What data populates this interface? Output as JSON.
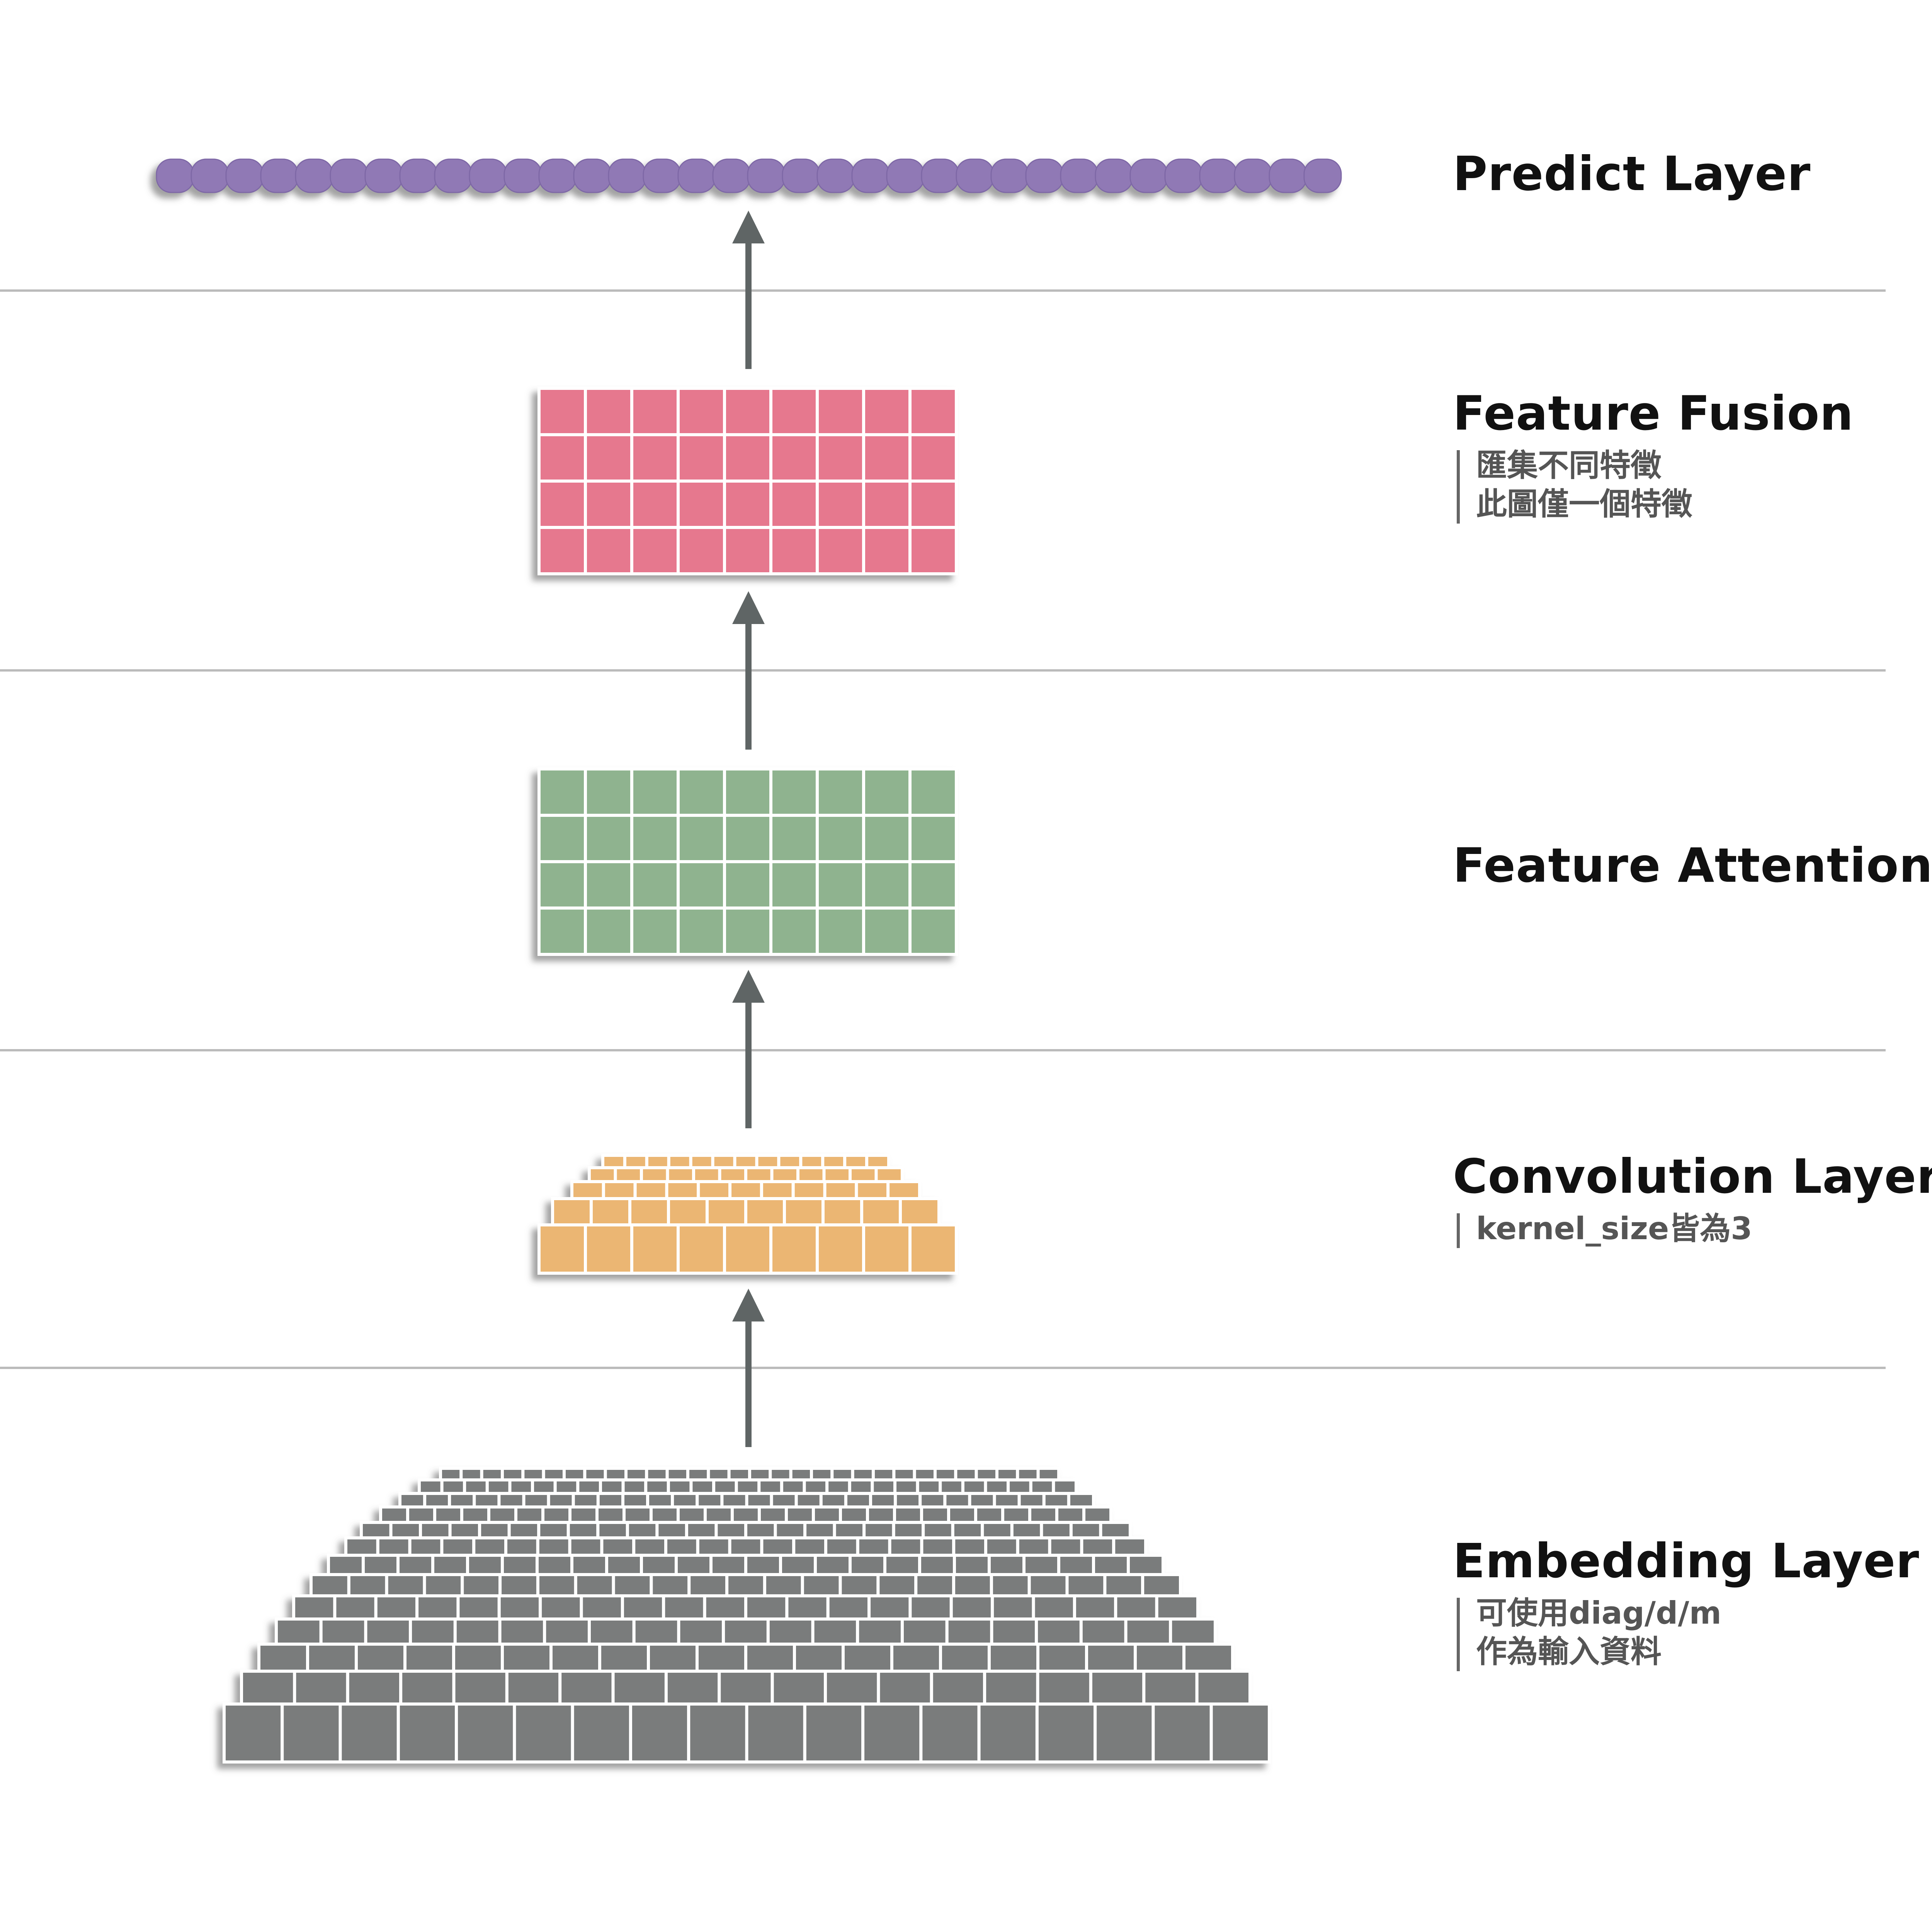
{
  "layers": [
    {
      "id": "predict",
      "title": "Predict Layer",
      "notes": [],
      "color": "#9079b5",
      "shape": "row-of-pills",
      "count": 34
    },
    {
      "id": "fusion",
      "title": "Feature Fusion",
      "notes": [
        "匯集不同特徵",
        "此圖僅一個特徵"
      ],
      "color": "#e6788e",
      "shape": "grid",
      "rows": 4,
      "cols": 9
    },
    {
      "id": "attention",
      "title": "Feature Attention",
      "notes": [],
      "color": "#8fb38f",
      "shape": "grid",
      "rows": 4,
      "cols": 9
    },
    {
      "id": "convolution",
      "title": "Convolution Layer",
      "notes": [
        "kernel_size皆為3"
      ],
      "color": "#ebb673",
      "shape": "brick-pyramid",
      "rows": 5
    },
    {
      "id": "embedding",
      "title": "Embedding Layer",
      "notes": [
        "可使用diag/d/m",
        "作為輸入資料"
      ],
      "color": "#7a7c7c",
      "shape": "brick-pyramid",
      "rows": 12
    }
  ],
  "colors": {
    "arrow": "#5f6565",
    "separator": "#bbbbbb",
    "shadow": "#b0b0b0",
    "grid_line": "#ffffff"
  }
}
